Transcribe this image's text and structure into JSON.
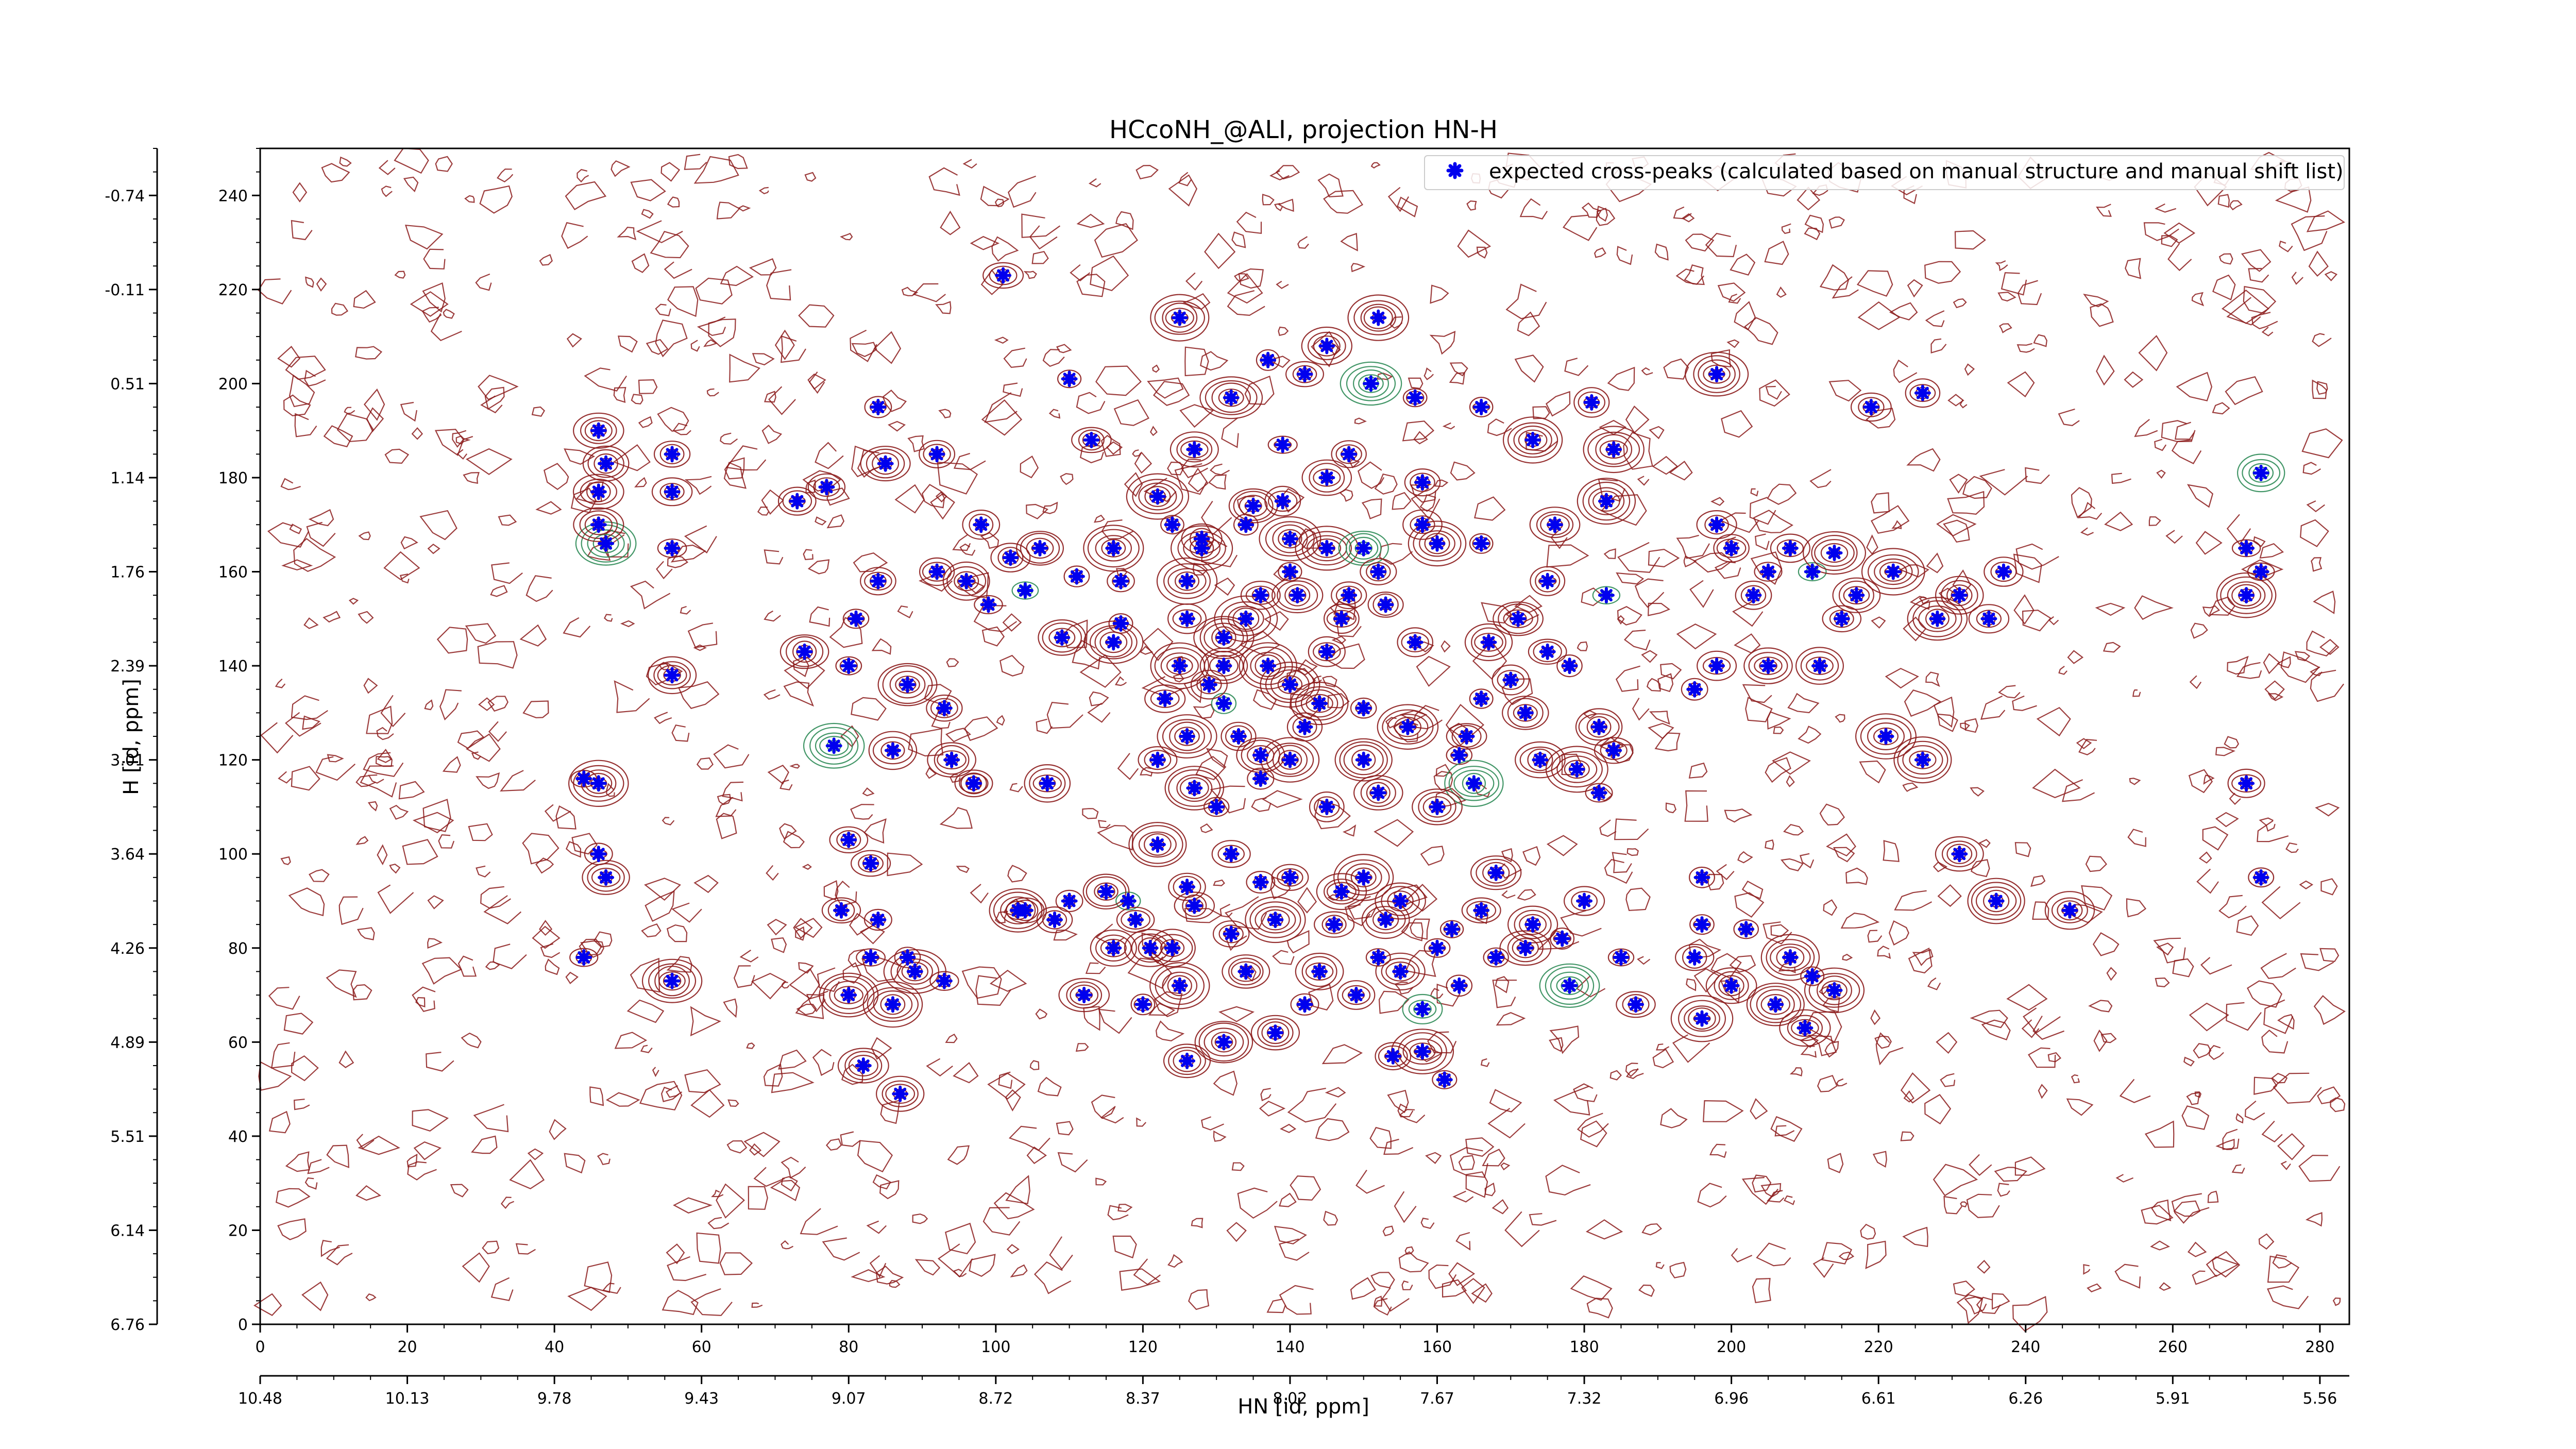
{
  "chart_data": {
    "type": "scatter",
    "title": "HCcoNH_@ALI, projection HN-H",
    "xlabel": "HN [id, ppm]",
    "ylabel": "H [id, ppm]",
    "x_index_ticks": [
      0,
      20,
      40,
      60,
      80,
      100,
      120,
      140,
      160,
      180,
      200,
      220,
      240,
      260,
      280
    ],
    "x_ppm_ticks": [
      "10.48",
      "10.13",
      "9.78",
      "9.43",
      "9.07",
      "8.72",
      "8.37",
      "8.02",
      "7.67",
      "7.32",
      "6.96",
      "6.61",
      "6.26",
      "5.91",
      "5.56"
    ],
    "y_index_ticks": [
      0,
      20,
      40,
      60,
      80,
      100,
      120,
      140,
      160,
      180,
      200,
      220,
      240
    ],
    "y_ppm_ticks": [
      "6.76",
      "6.14",
      "5.51",
      "4.89",
      "4.26",
      "3.64",
      "3.01",
      "2.39",
      "1.76",
      "1.14",
      "0.51",
      "-0.11",
      "-0.74"
    ],
    "xlim": [
      0,
      284
    ],
    "ylim": [
      0,
      250
    ],
    "legend": {
      "label": "expected cross-peaks (calculated based on manual structure and manual shift list)",
      "placement": "top-right"
    },
    "colors": {
      "peaks": "#0000ee",
      "positive_contours": "#8b1a1a",
      "negative_contours": "#2e8b57"
    },
    "grid": false,
    "series": [
      {
        "name": "expected cross-peaks (calculated based on manual structure and manual shift list)",
        "points": [
          [
            101,
            223
          ],
          [
            125,
            214
          ],
          [
            152,
            214
          ],
          [
            137,
            205
          ],
          [
            145,
            208
          ],
          [
            110,
            201
          ],
          [
            142,
            202
          ],
          [
            151,
            200
          ],
          [
            157,
            197
          ],
          [
            132,
            197
          ],
          [
            113,
            188
          ],
          [
            127,
            186
          ],
          [
            139,
            187
          ],
          [
            148,
            185
          ],
          [
            145,
            180
          ],
          [
            158,
            179
          ],
          [
            122,
            176
          ],
          [
            135,
            174
          ],
          [
            134,
            170
          ],
          [
            124,
            170
          ],
          [
            128,
            167
          ],
          [
            140,
            167
          ],
          [
            158,
            170
          ],
          [
            116,
            165
          ],
          [
            128,
            165
          ],
          [
            145,
            165
          ],
          [
            150,
            165
          ],
          [
            140,
            160
          ],
          [
            126,
            158
          ],
          [
            117,
            158
          ],
          [
            136,
            155
          ],
          [
            141,
            155
          ],
          [
            153,
            153
          ],
          [
            126,
            150
          ],
          [
            134,
            150
          ],
          [
            147,
            150
          ],
          [
            131,
            146
          ],
          [
            116,
            145
          ],
          [
            157,
            145
          ],
          [
            145,
            143
          ],
          [
            137,
            140
          ],
          [
            131,
            140
          ],
          [
            125,
            140
          ],
          [
            140,
            136
          ],
          [
            123,
            133
          ],
          [
            131,
            132
          ],
          [
            150,
            131
          ],
          [
            156,
            127
          ],
          [
            142,
            127
          ],
          [
            126,
            125
          ],
          [
            122,
            120
          ],
          [
            140,
            120
          ],
          [
            150,
            120
          ],
          [
            136,
            116
          ],
          [
            107,
            115
          ],
          [
            127,
            114
          ],
          [
            152,
            113
          ],
          [
            130,
            110
          ],
          [
            145,
            110
          ],
          [
            132,
            100
          ],
          [
            122,
            102
          ],
          [
            150,
            95
          ],
          [
            140,
            95
          ],
          [
            126,
            93
          ],
          [
            118,
            90
          ],
          [
            110,
            90
          ],
          [
            155,
            90
          ],
          [
            166,
            88
          ],
          [
            103,
            88
          ],
          [
            108,
            86
          ],
          [
            138,
            86
          ],
          [
            146,
            85
          ],
          [
            132,
            83
          ],
          [
            124,
            80
          ],
          [
            116,
            80
          ],
          [
            160,
            80
          ],
          [
            152,
            78
          ],
          [
            134,
            75
          ],
          [
            144,
            75
          ],
          [
            125,
            72
          ],
          [
            112,
            70
          ],
          [
            120,
            68
          ],
          [
            142,
            68
          ],
          [
            158,
            67
          ],
          [
            131,
            60
          ],
          [
            138,
            62
          ],
          [
            126,
            56
          ],
          [
            154,
            57
          ],
          [
            161,
            52
          ],
          [
            158,
            58
          ],
          [
            84,
            195
          ],
          [
            92,
            185
          ],
          [
            85,
            183
          ],
          [
            77,
            178
          ],
          [
            73,
            175
          ],
          [
            92,
            160
          ],
          [
            84,
            158
          ],
          [
            81,
            150
          ],
          [
            74,
            143
          ],
          [
            80,
            140
          ],
          [
            88,
            136
          ],
          [
            93,
            131
          ],
          [
            78,
            123
          ],
          [
            86,
            122
          ],
          [
            94,
            120
          ],
          [
            97,
            115
          ],
          [
            80,
            103
          ],
          [
            83,
            98
          ],
          [
            79,
            88
          ],
          [
            84,
            86
          ],
          [
            83,
            78
          ],
          [
            88,
            78
          ],
          [
            89,
            75
          ],
          [
            93,
            73
          ],
          [
            80,
            70
          ],
          [
            86,
            68
          ],
          [
            82,
            55
          ],
          [
            87,
            49
          ],
          [
            46,
            190
          ],
          [
            47,
            183
          ],
          [
            46,
            177
          ],
          [
            47,
            166
          ],
          [
            46,
            170
          ],
          [
            56,
            185
          ],
          [
            56,
            177
          ],
          [
            56,
            165
          ],
          [
            56,
            138
          ],
          [
            56,
            73
          ],
          [
            44,
            116
          ],
          [
            46,
            115
          ],
          [
            46,
            100
          ],
          [
            47,
            95
          ],
          [
            44,
            78
          ],
          [
            166,
            195
          ],
          [
            173,
            188
          ],
          [
            184,
            186
          ],
          [
            183,
            175
          ],
          [
            176,
            170
          ],
          [
            166,
            166
          ],
          [
            175,
            158
          ],
          [
            183,
            155
          ],
          [
            171,
            150
          ],
          [
            167,
            145
          ],
          [
            175,
            143
          ],
          [
            178,
            140
          ],
          [
            170,
            137
          ],
          [
            166,
            133
          ],
          [
            172,
            130
          ],
          [
            182,
            127
          ],
          [
            184,
            122
          ],
          [
            174,
            120
          ],
          [
            179,
            118
          ],
          [
            182,
            113
          ],
          [
            168,
            96
          ],
          [
            180,
            90
          ],
          [
            173,
            85
          ],
          [
            177,
            82
          ],
          [
            172,
            80
          ],
          [
            185,
            78
          ],
          [
            178,
            72
          ],
          [
            187,
            68
          ],
          [
            196,
            95
          ],
          [
            196,
            85
          ],
          [
            202,
            84
          ],
          [
            195,
            78
          ],
          [
            208,
            78
          ],
          [
            211,
            74
          ],
          [
            214,
            71
          ],
          [
            200,
            72
          ],
          [
            206,
            68
          ],
          [
            196,
            65
          ],
          [
            210,
            63
          ],
          [
            195,
            135
          ],
          [
            198,
            140
          ],
          [
            205,
            140
          ],
          [
            212,
            140
          ],
          [
            215,
            150
          ],
          [
            217,
            155
          ],
          [
            211,
            160
          ],
          [
            214,
            164
          ],
          [
            208,
            165
          ],
          [
            205,
            160
          ],
          [
            203,
            155
          ],
          [
            200,
            165
          ],
          [
            198,
            170
          ],
          [
            222,
            160
          ],
          [
            228,
            150
          ],
          [
            235,
            150
          ],
          [
            237,
            160
          ],
          [
            231,
            155
          ],
          [
            226,
            120
          ],
          [
            221,
            125
          ],
          [
            231,
            100
          ],
          [
            236,
            90
          ],
          [
            246,
            88
          ],
          [
            270,
            165
          ],
          [
            272,
            160
          ],
          [
            272,
            181
          ],
          [
            270,
            155
          ],
          [
            270,
            115
          ],
          [
            272,
            95
          ],
          [
            198,
            202
          ],
          [
            219,
            195
          ],
          [
            226,
            198
          ],
          [
            181,
            196
          ],
          [
            152,
            160
          ],
          [
            148,
            155
          ],
          [
            139,
            175
          ],
          [
            160,
            166
          ],
          [
            117,
            149
          ],
          [
            129,
            136
          ],
          [
            144,
            132
          ],
          [
            133,
            125
          ],
          [
            136,
            121
          ],
          [
            163,
            121
          ],
          [
            164,
            125
          ],
          [
            165,
            115
          ],
          [
            160,
            110
          ],
          [
            115,
            92
          ],
          [
            119,
            86
          ],
          [
            121,
            80
          ],
          [
            127,
            89
          ],
          [
            136,
            94
          ],
          [
            147,
            92
          ],
          [
            149,
            70
          ],
          [
            153,
            86
          ],
          [
            155,
            75
          ],
          [
            163,
            72
          ],
          [
            168,
            78
          ],
          [
            162,
            84
          ],
          [
            104,
            88
          ],
          [
            97,
            115
          ],
          [
            109,
            146
          ],
          [
            111,
            159
          ],
          [
            106,
            165
          ],
          [
            104,
            156
          ],
          [
            99,
            153
          ],
          [
            102,
            163
          ],
          [
            96,
            158
          ],
          [
            98,
            170
          ]
        ]
      }
    ]
  }
}
